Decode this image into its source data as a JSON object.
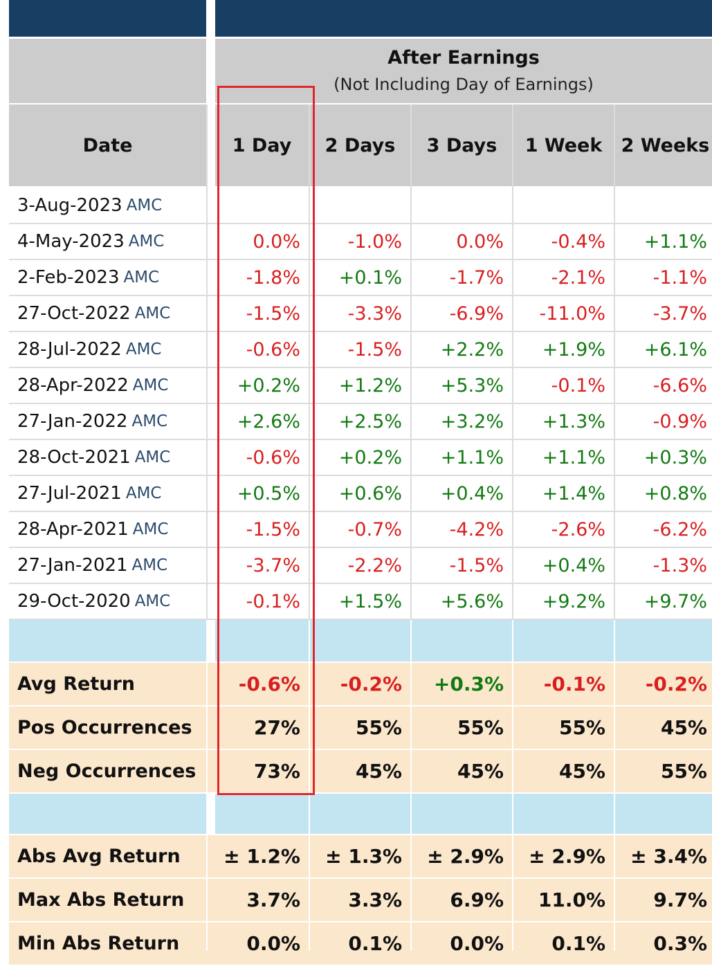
{
  "header": {
    "group_title": "After Earnings",
    "group_subtitle": "(Not Including Day of Earnings)",
    "date_col": "Date",
    "columns": [
      "1 Day",
      "2 Days",
      "3 Days",
      "1 Week",
      "2 Weeks"
    ]
  },
  "rows": [
    {
      "date": "3-Aug-2023",
      "tag": "AMC",
      "values": [
        "",
        "",
        "",
        "",
        ""
      ]
    },
    {
      "date": "4-May-2023",
      "tag": "AMC",
      "values": [
        "0.0%",
        "-1.0%",
        "0.0%",
        "-0.4%",
        "+1.1%"
      ]
    },
    {
      "date": "2-Feb-2023",
      "tag": "AMC",
      "values": [
        "-1.8%",
        "+0.1%",
        "-1.7%",
        "-2.1%",
        "-1.1%"
      ]
    },
    {
      "date": "27-Oct-2022",
      "tag": "AMC",
      "values": [
        "-1.5%",
        "-3.3%",
        "-6.9%",
        "-11.0%",
        "-3.7%"
      ]
    },
    {
      "date": "28-Jul-2022",
      "tag": "AMC",
      "values": [
        "-0.6%",
        "-1.5%",
        "+2.2%",
        "+1.9%",
        "+6.1%"
      ]
    },
    {
      "date": "28-Apr-2022",
      "tag": "AMC",
      "values": [
        "+0.2%",
        "+1.2%",
        "+5.3%",
        "-0.1%",
        "-6.6%"
      ]
    },
    {
      "date": "27-Jan-2022",
      "tag": "AMC",
      "values": [
        "+2.6%",
        "+2.5%",
        "+3.2%",
        "+1.3%",
        "-0.9%"
      ]
    },
    {
      "date": "28-Oct-2021",
      "tag": "AMC",
      "values": [
        "-0.6%",
        "+0.2%",
        "+1.1%",
        "+1.1%",
        "+0.3%"
      ]
    },
    {
      "date": "27-Jul-2021",
      "tag": "AMC",
      "values": [
        "+0.5%",
        "+0.6%",
        "+0.4%",
        "+1.4%",
        "+0.8%"
      ]
    },
    {
      "date": "28-Apr-2021",
      "tag": "AMC",
      "values": [
        "-1.5%",
        "-0.7%",
        "-4.2%",
        "-2.6%",
        "-6.2%"
      ]
    },
    {
      "date": "27-Jan-2021",
      "tag": "AMC",
      "values": [
        "-3.7%",
        "-2.2%",
        "-1.5%",
        "+0.4%",
        "-1.3%"
      ]
    },
    {
      "date": "29-Oct-2020",
      "tag": "AMC",
      "values": [
        "-0.1%",
        "+1.5%",
        "+5.6%",
        "+9.2%",
        "+9.7%"
      ]
    }
  ],
  "summary1": [
    {
      "label": "Avg Return",
      "values": [
        "-0.6%",
        "-0.2%",
        "+0.3%",
        "-0.1%",
        "-0.2%"
      ]
    },
    {
      "label": "Pos Occurrences",
      "values": [
        "27%",
        "55%",
        "55%",
        "55%",
        "45%"
      ]
    },
    {
      "label": "Neg Occurrences",
      "values": [
        "73%",
        "45%",
        "45%",
        "45%",
        "55%"
      ]
    }
  ],
  "summary2": [
    {
      "label": "Abs Avg Return",
      "values": [
        "± 1.2%",
        "± 1.3%",
        "± 2.9%",
        "± 2.9%",
        "± 3.4%"
      ]
    },
    {
      "label": "Max Abs Return",
      "values": [
        "3.7%",
        "3.3%",
        "6.9%",
        "11.0%",
        "9.7%"
      ]
    },
    {
      "label": "Min Abs Return",
      "values": [
        "0.0%",
        "0.1%",
        "0.0%",
        "0.1%",
        "0.3%"
      ]
    }
  ],
  "colors": {
    "navy": "#173f63",
    "positive": "#137a13",
    "negative": "#d81f1f",
    "highlight": "#e1262a"
  }
}
